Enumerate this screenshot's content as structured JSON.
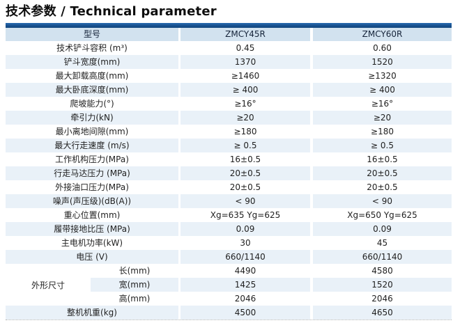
{
  "title": "技术参数 / Technical parameter",
  "colors": {
    "top_bar_blue": "#17508f",
    "header_blue": "#d2e2ef",
    "row_stripe_blue": "#e9f1f8",
    "text": "#1f1f1f"
  },
  "table": {
    "header": {
      "model_label": "型号",
      "col1": "ZMCY45R",
      "col2": "ZMCY60R"
    },
    "rows": [
      {
        "label": "技术铲斗容积 (m³)",
        "v1": "0.45",
        "v2": "0.60"
      },
      {
        "label": "铲斗宽度(mm)",
        "v1": "1370",
        "v2": "1520"
      },
      {
        "label": "最大卸载高度(mm)",
        "v1": "≥1460",
        "v2": "≥1320"
      },
      {
        "label": "最大卧底深度(mm)",
        "v1": "≥ 400",
        "v2": "≥ 400"
      },
      {
        "label": "爬坡能力(°)",
        "v1": "≥16°",
        "v2": "≥16°"
      },
      {
        "label": "牵引力(kN)",
        "v1": "≥20",
        "v2": "≥20"
      },
      {
        "label": "最小离地间隙(mm)",
        "v1": "≥180",
        "v2": "≥180"
      },
      {
        "label": "最大行走速度 (m/s)",
        "v1": "≥ 0.5",
        "v2": "≥ 0.5"
      },
      {
        "label": "工作机构压力(MPa)",
        "v1": "16±0.5",
        "v2": "16±0.5"
      },
      {
        "label": "行走马达压力 (MPa)",
        "v1": "20±0.5",
        "v2": "20±0.5"
      },
      {
        "label": "外接油口压力(MPa)",
        "v1": "20±0.5",
        "v2": "20±0.5"
      },
      {
        "label": "噪声(声压级)(dB(A))",
        "v1": "< 90",
        "v2": "< 90"
      },
      {
        "label": "重心位置(mm)",
        "v1": "Xg=635 Yg=625",
        "v2": "Xg=650 Yg=625"
      },
      {
        "label": "履带接地比压 (MPa)",
        "v1": "0.09",
        "v2": "0.09"
      },
      {
        "label": "主电机功率(kW)",
        "v1": "30",
        "v2": "45"
      },
      {
        "label": "电压 (V)",
        "v1": "660/1140",
        "v2": "660/1140"
      }
    ],
    "dimension_group": {
      "label": "外形尺寸",
      "rows": [
        {
          "label": "长(mm)",
          "v1": "4490",
          "v2": "4580"
        },
        {
          "label": "宽(mm)",
          "v1": "1425",
          "v2": "1520"
        },
        {
          "label": "高(mm)",
          "v1": "2046",
          "v2": "2046"
        }
      ]
    },
    "footer_row": {
      "label": "整机机重(kg)",
      "v1": "4500",
      "v2": "4650"
    }
  }
}
